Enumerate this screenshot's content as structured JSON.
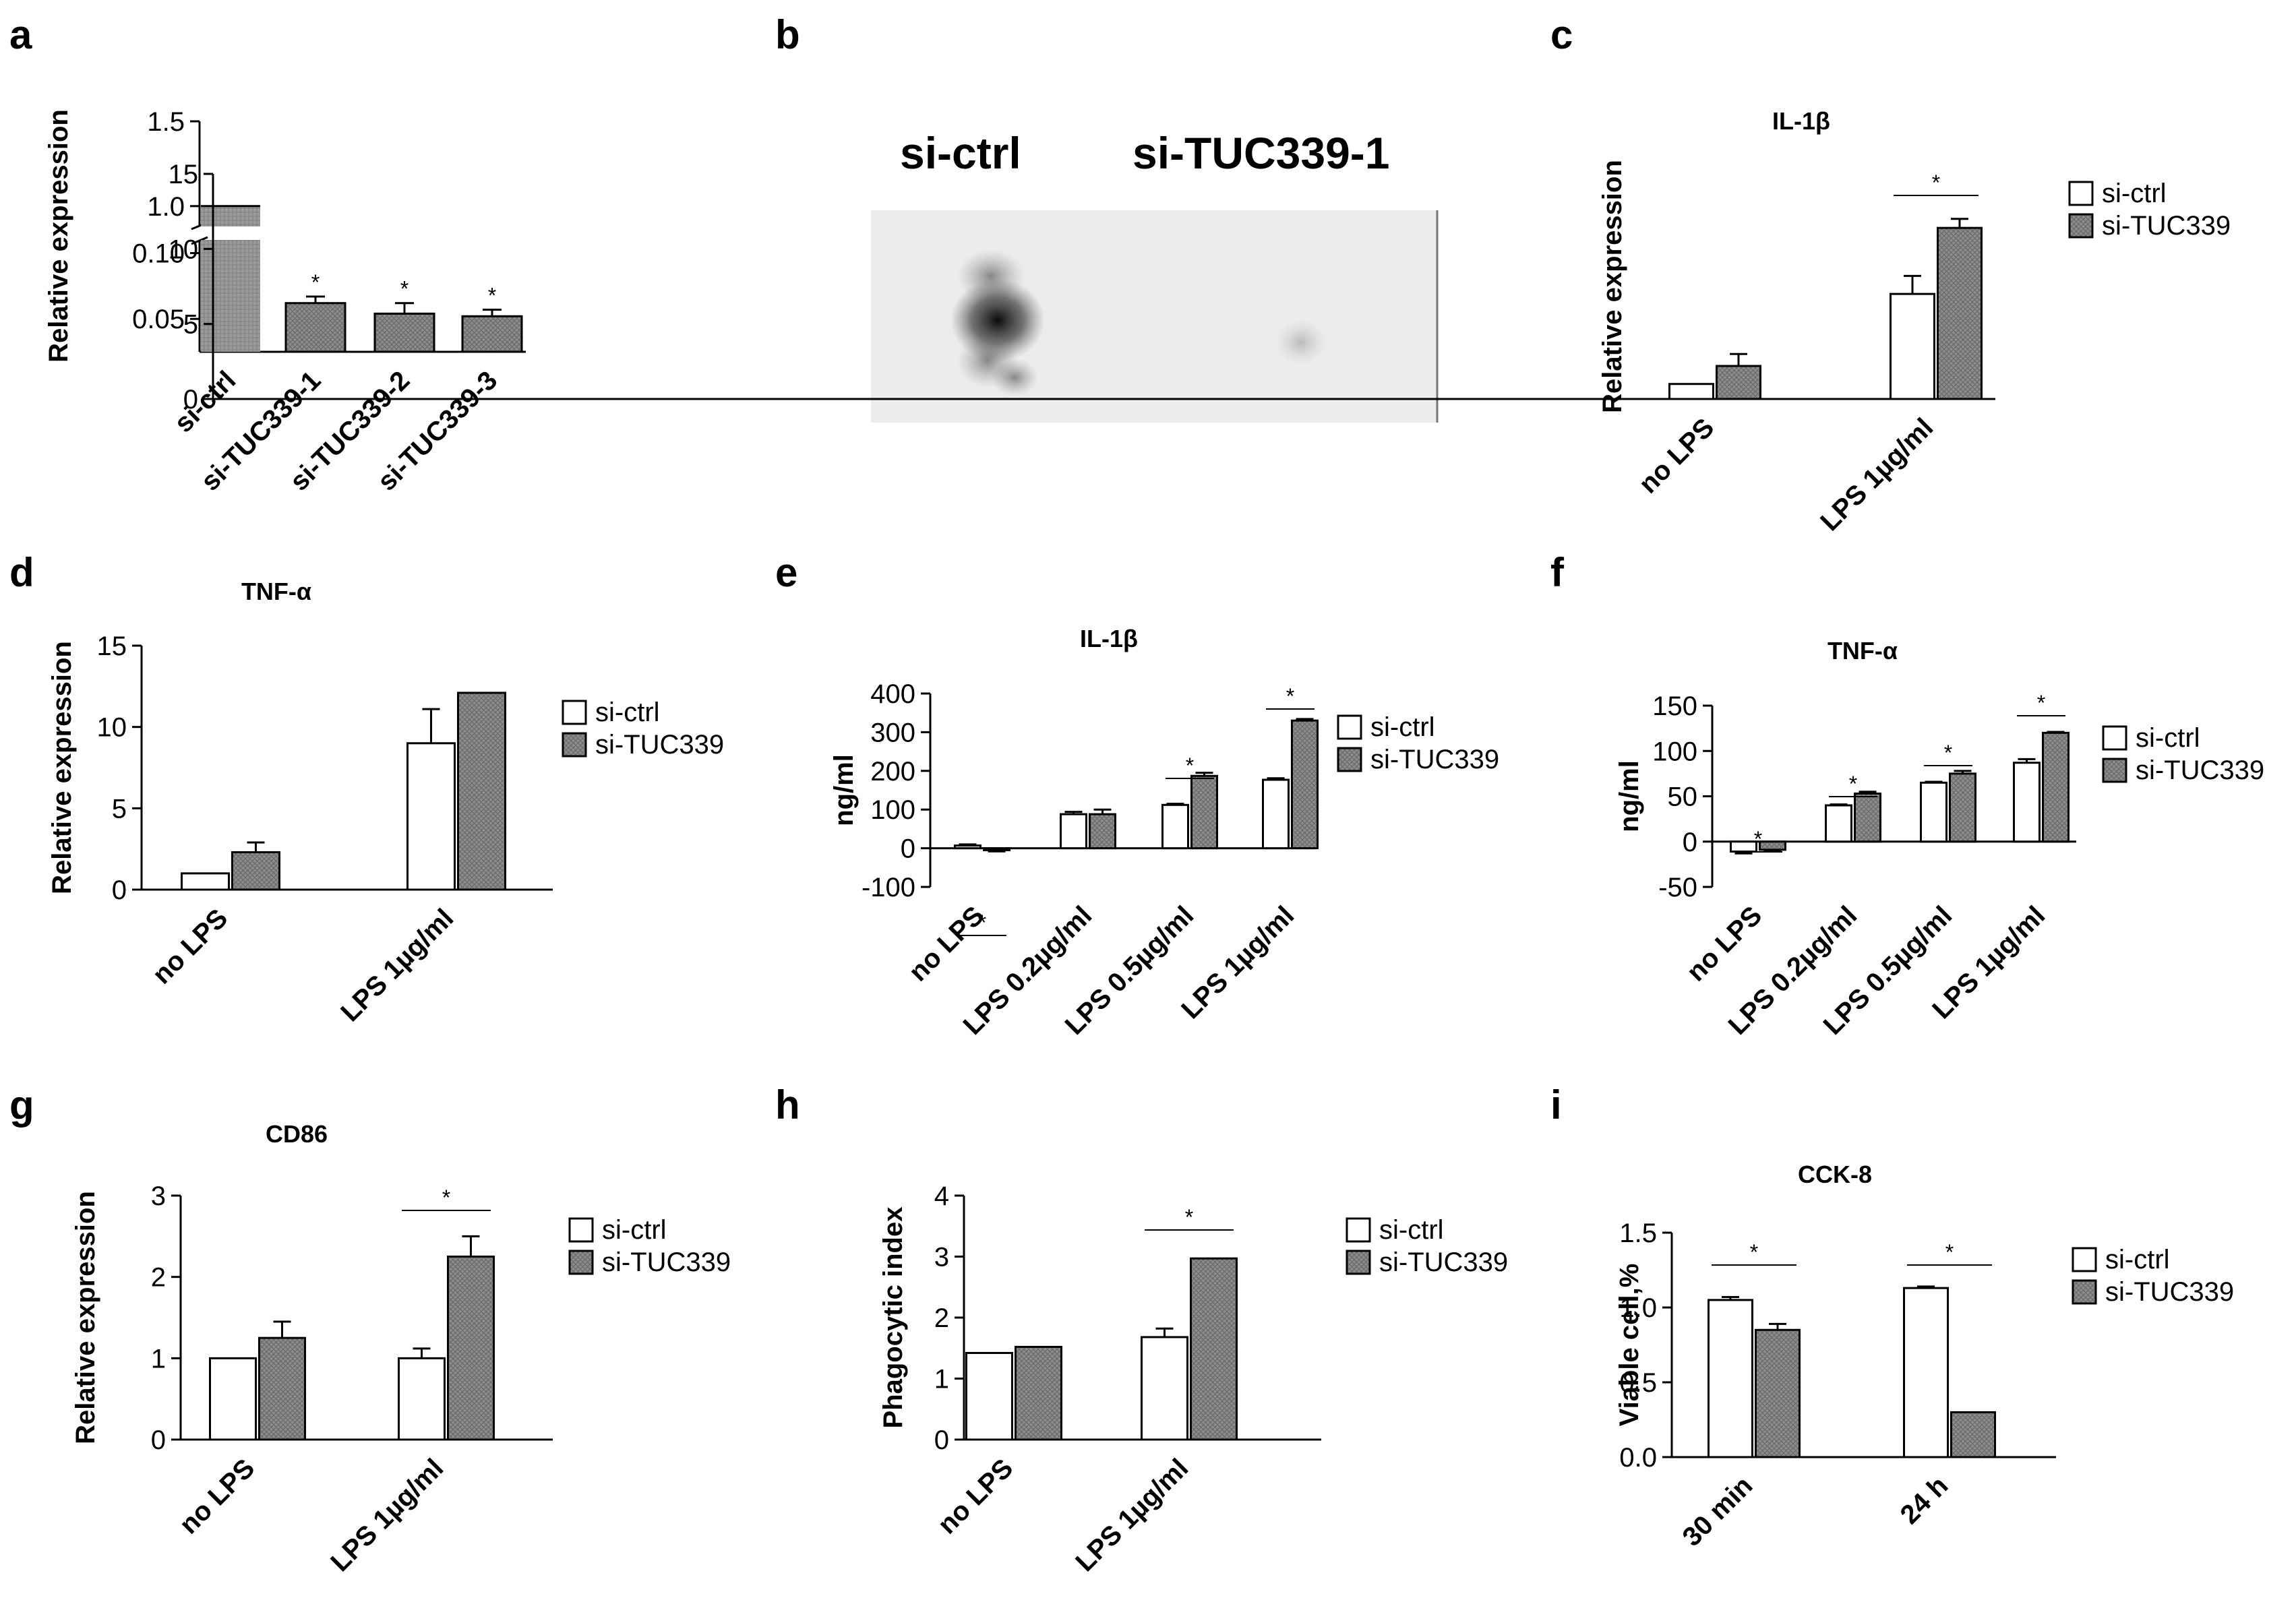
{
  "figure": {
    "bar_colors": {
      "ctrl": "#ffffff",
      "si": "#8c8c8c",
      "stroke": "#000000"
    },
    "significance_mark": "*"
  },
  "chart_data": [
    {
      "id": "a",
      "panel_label": "a",
      "type": "bar",
      "title": "",
      "ylabel": "Relative expression",
      "categories": [
        "si-ctrl",
        "si-TUC339-1",
        "si-TUC339-2",
        "si-TUC339-3"
      ],
      "values": [
        1.0,
        0.062,
        0.054,
        0.052
      ],
      "errors": [
        0,
        0.005,
        0.008,
        0.005
      ],
      "significant": [
        false,
        true,
        true,
        true
      ],
      "axis_break": {
        "lower": [
          0.025,
          0.11
        ],
        "upper": [
          0.88,
          1.5
        ]
      },
      "y_ticks": [
        0.05,
        0.1,
        1.0,
        1.5
      ],
      "y_tick_labels": [
        "0.05",
        "0.10",
        "1.0",
        "1.5"
      ]
    },
    {
      "id": "c",
      "panel_label": "c",
      "type": "bar",
      "title": "IL-1β",
      "ylabel": "Relative expression",
      "categories": [
        "no LPS",
        "LPS 1µg/ml"
      ],
      "series": [
        {
          "name": "si-ctrl",
          "values": [
            1.0,
            7.0
          ],
          "errors": [
            0,
            1.2
          ]
        },
        {
          "name": "si-TUC339",
          "values": [
            2.2,
            11.4
          ],
          "errors": [
            0.8,
            0.6
          ]
        }
      ],
      "significant": [
        false,
        true
      ],
      "ylim": [
        0,
        15
      ],
      "y_ticks": [
        0,
        5,
        10,
        15
      ]
    },
    {
      "id": "d",
      "panel_label": "d",
      "type": "bar",
      "title": "TNF-α",
      "ylabel": "Relative expression",
      "categories": [
        "no LPS",
        "LPS 1µg/ml"
      ],
      "series": [
        {
          "name": "si-ctrl",
          "values": [
            1.0,
            9.0
          ],
          "errors": [
            0,
            2.1
          ]
        },
        {
          "name": "si-TUC339",
          "values": [
            2.3,
            12.1
          ],
          "errors": [
            0.6,
            0
          ]
        }
      ],
      "significant": [
        false,
        false
      ],
      "ylim": [
        0,
        15
      ],
      "y_ticks": [
        0,
        5,
        10,
        15
      ]
    },
    {
      "id": "e",
      "panel_label": "e",
      "type": "bar",
      "title": "IL-1β",
      "ylabel": "ng/ml",
      "categories": [
        "no LPS",
        "LPS 0.2µg/ml",
        "LPS 0.5µg/ml",
        "LPS 1µg/ml"
      ],
      "series": [
        {
          "name": "si-ctrl",
          "values": [
            7,
            88,
            112,
            177
          ],
          "errors": [
            3,
            6,
            3,
            4
          ]
        },
        {
          "name": "si-TUC339",
          "values": [
            -5,
            88,
            187,
            330
          ],
          "errors": [
            3,
            12,
            8,
            4
          ]
        }
      ],
      "significant": [
        true,
        false,
        true,
        true
      ],
      "ylim": [
        -100,
        400
      ],
      "y_ticks": [
        -100,
        0,
        100,
        200,
        300,
        400
      ]
    },
    {
      "id": "f",
      "panel_label": "f",
      "type": "bar",
      "title": "TNF-α",
      "ylabel": "ng/ml",
      "categories": [
        "no LPS",
        "LPS 0.2µg/ml",
        "LPS 0.5µg/ml",
        "LPS 1µg/ml"
      ],
      "series": [
        {
          "name": "si-ctrl",
          "values": [
            -11,
            40,
            65,
            87
          ],
          "errors": [
            2,
            1,
            1,
            4
          ]
        },
        {
          "name": "si-TUC339",
          "values": [
            -9,
            53,
            75,
            120
          ],
          "errors": [
            2,
            2,
            3,
            1
          ]
        }
      ],
      "significant": [
        true,
        true,
        true,
        true
      ],
      "ylim": [
        -50,
        150
      ],
      "y_ticks": [
        -50,
        0,
        50,
        100,
        150
      ]
    },
    {
      "id": "g",
      "panel_label": "g",
      "type": "bar",
      "title": "CD86",
      "ylabel": "Relative expression",
      "categories": [
        "no LPS",
        "LPS 1µg/ml"
      ],
      "series": [
        {
          "name": "si-ctrl",
          "values": [
            1.0,
            1.0
          ],
          "errors": [
            0,
            0.12
          ]
        },
        {
          "name": "si-TUC339",
          "values": [
            1.25,
            2.25
          ],
          "errors": [
            0.2,
            0.25
          ]
        }
      ],
      "significant": [
        false,
        true
      ],
      "ylim": [
        0,
        3
      ],
      "y_ticks": [
        0,
        1,
        2,
        3
      ]
    },
    {
      "id": "h",
      "panel_label": "h",
      "type": "bar",
      "title": "",
      "ylabel": "Phagocytic index",
      "categories": [
        "no LPS",
        "LPS 1µg/ml"
      ],
      "series": [
        {
          "name": "si-ctrl",
          "values": [
            1.42,
            1.68
          ],
          "errors": [
            0,
            0.14
          ]
        },
        {
          "name": "si-TUC339",
          "values": [
            1.52,
            2.97
          ],
          "errors": [
            0,
            0
          ]
        }
      ],
      "significant": [
        false,
        true
      ],
      "ylim": [
        0,
        4
      ],
      "y_ticks": [
        0,
        1,
        2,
        3,
        4
      ]
    },
    {
      "id": "i",
      "panel_label": "i",
      "type": "bar",
      "title": "CCK-8",
      "ylabel": "Viable cell,%",
      "categories": [
        "30 min",
        "24 h"
      ],
      "series": [
        {
          "name": "si-ctrl",
          "values": [
            1.05,
            1.13
          ],
          "errors": [
            0.02,
            0.01
          ]
        },
        {
          "name": "si-TUC339",
          "values": [
            0.85,
            0.3
          ],
          "errors": [
            0.04,
            0
          ]
        }
      ],
      "significant": [
        true,
        true
      ],
      "ylim": [
        0,
        1.5
      ],
      "y_ticks": [
        0,
        0.5,
        1.0,
        1.5
      ],
      "y_tick_labels": [
        "0.0",
        "0.5",
        "1.0",
        "1.5"
      ]
    }
  ],
  "blot": {
    "panel_label": "b",
    "lane_labels": [
      "si-ctrl",
      "si-TUC339-1"
    ]
  }
}
